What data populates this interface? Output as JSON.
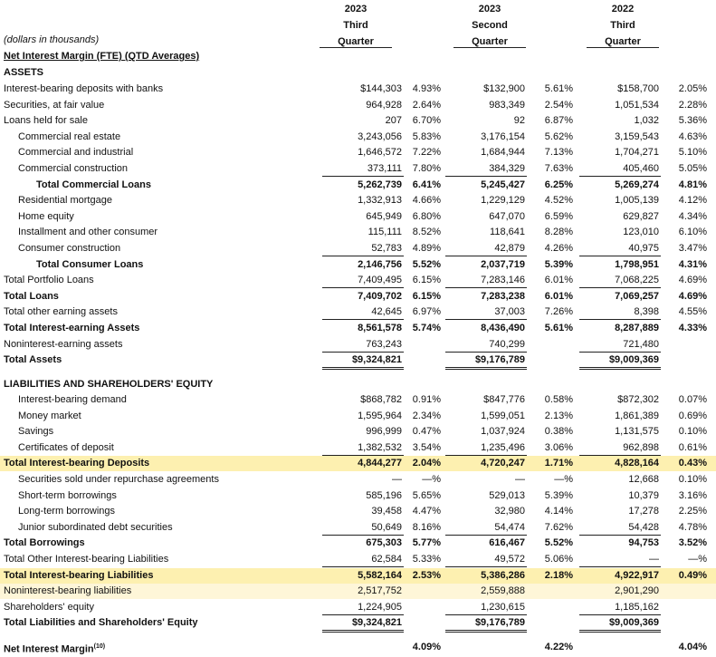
{
  "header": {
    "columns": [
      {
        "year": "2023",
        "period": "Third",
        "unit": "Quarter"
      },
      {
        "year": "2023",
        "period": "Second",
        "unit": "Quarter"
      },
      {
        "year": "2022",
        "period": "Third",
        "unit": "Quarter"
      }
    ]
  },
  "table": {
    "rows": [
      {
        "label": "(dollars in thousands)"
      },
      {
        "label": "Net Interest Margin (FTE) (QTD Averages)"
      },
      {
        "label": "ASSETS"
      },
      {
        "label": "Interest-bearing deposits with banks",
        "cells": [
          "$144,303",
          "4.93%",
          "$132,900",
          "5.61%",
          "$158,700",
          "2.05%"
        ]
      },
      {
        "label": "Securities, at fair value",
        "cells": [
          "964,928",
          "2.64%",
          "983,349",
          "2.54%",
          "1,051,534",
          "2.28%"
        ]
      },
      {
        "label": "Loans held for sale",
        "cells": [
          "207",
          "6.70%",
          "92",
          "6.87%",
          "1,032",
          "5.36%"
        ]
      },
      {
        "label": "Commercial real estate",
        "cells": [
          "3,243,056",
          "5.83%",
          "3,176,154",
          "5.62%",
          "3,159,543",
          "4.63%"
        ]
      },
      {
        "label": "Commercial and industrial",
        "cells": [
          "1,646,572",
          "7.22%",
          "1,684,944",
          "7.13%",
          "1,704,271",
          "5.10%"
        ]
      },
      {
        "label": "Commercial construction",
        "cells": [
          "373,111",
          "7.80%",
          "384,329",
          "7.63%",
          "405,460",
          "5.05%"
        ]
      },
      {
        "label": "Total Commercial Loans",
        "cells": [
          "5,262,739",
          "6.41%",
          "5,245,427",
          "6.25%",
          "5,269,274",
          "4.81%"
        ]
      },
      {
        "label": "Residential mortgage",
        "cells": [
          "1,332,913",
          "4.66%",
          "1,229,129",
          "4.52%",
          "1,005,139",
          "4.12%"
        ]
      },
      {
        "label": "Home equity",
        "cells": [
          "645,949",
          "6.80%",
          "647,070",
          "6.59%",
          "629,827",
          "4.34%"
        ]
      },
      {
        "label": "Installment and other consumer",
        "cells": [
          "115,111",
          "8.52%",
          "118,641",
          "8.28%",
          "123,010",
          "6.10%"
        ]
      },
      {
        "label": "Consumer construction",
        "cells": [
          "52,783",
          "4.89%",
          "42,879",
          "4.26%",
          "40,975",
          "3.47%"
        ]
      },
      {
        "label": "Total Consumer Loans",
        "cells": [
          "2,146,756",
          "5.52%",
          "2,037,719",
          "5.39%",
          "1,798,951",
          "4.31%"
        ]
      },
      {
        "label": "Total Portfolio Loans",
        "cells": [
          "7,409,495",
          "6.15%",
          "7,283,146",
          "6.01%",
          "7,068,225",
          "4.69%"
        ]
      },
      {
        "label": "Total Loans",
        "cells": [
          "7,409,702",
          "6.15%",
          "7,283,238",
          "6.01%",
          "7,069,257",
          "4.69%"
        ]
      },
      {
        "label": "Total other earning assets",
        "cells": [
          "42,645",
          "6.97%",
          "37,003",
          "7.26%",
          "8,398",
          "4.55%"
        ]
      },
      {
        "label": "Total Interest-earning Assets",
        "cells": [
          "8,561,578",
          "5.74%",
          "8,436,490",
          "5.61%",
          "8,287,889",
          "4.33%"
        ]
      },
      {
        "label": "Noninterest-earning assets",
        "cells": [
          "763,243",
          null,
          "740,299",
          null,
          "721,480",
          null
        ]
      },
      {
        "label": "Total Assets",
        "cells": [
          "$9,324,821",
          null,
          "$9,176,789",
          null,
          "$9,009,369",
          null
        ]
      },
      {
        "label": "LIABILITIES AND SHAREHOLDERS' EQUITY"
      },
      {
        "label": "Interest-bearing demand",
        "cells": [
          "$868,782",
          "0.91%",
          "$847,776",
          "0.58%",
          "$872,302",
          "0.07%"
        ]
      },
      {
        "label": "Money market",
        "cells": [
          "1,595,964",
          "2.34%",
          "1,599,051",
          "2.13%",
          "1,861,389",
          "0.69%"
        ]
      },
      {
        "label": "Savings",
        "cells": [
          "996,999",
          "0.47%",
          "1,037,924",
          "0.38%",
          "1,131,575",
          "0.10%"
        ]
      },
      {
        "label": "Certificates of deposit",
        "cells": [
          "1,382,532",
          "3.54%",
          "1,235,496",
          "3.06%",
          "962,898",
          "0.61%"
        ]
      },
      {
        "label": "Total Interest-bearing Deposits",
        "cells": [
          "4,844,277",
          "2.04%",
          "4,720,247",
          "1.71%",
          "4,828,164",
          "0.43%"
        ]
      },
      {
        "label": "Securities sold under repurchase agreements",
        "cells": [
          "—",
          "—%",
          "—",
          "—%",
          "12,668",
          "0.10%"
        ]
      },
      {
        "label": "Short-term borrowings",
        "cells": [
          "585,196",
          "5.65%",
          "529,013",
          "5.39%",
          "10,379",
          "3.16%"
        ]
      },
      {
        "label": "Long-term borrowings",
        "cells": [
          "39,458",
          "4.47%",
          "32,980",
          "4.14%",
          "17,278",
          "2.25%"
        ]
      },
      {
        "label": "Junior subordinated debt securities",
        "cells": [
          "50,649",
          "8.16%",
          "54,474",
          "7.62%",
          "54,428",
          "4.78%"
        ]
      },
      {
        "label": "Total Borrowings",
        "cells": [
          "675,303",
          "5.77%",
          "616,467",
          "5.52%",
          "94,753",
          "3.52%"
        ]
      },
      {
        "label": "Total Other Interest-bearing Liabilities",
        "cells": [
          "62,584",
          "5.33%",
          "49,572",
          "5.06%",
          "—",
          "—%"
        ]
      },
      {
        "label": "Total Interest-bearing Liabilities",
        "cells": [
          "5,582,164",
          "2.53%",
          "5,386,286",
          "2.18%",
          "4,922,917",
          "0.49%"
        ]
      },
      {
        "label": "Noninterest-bearing liabilities",
        "cells": [
          "2,517,752",
          null,
          "2,559,888",
          null,
          "2,901,290",
          null
        ]
      },
      {
        "label": "Shareholders' equity",
        "cells": [
          "1,224,905",
          null,
          "1,230,615",
          null,
          "1,185,162",
          null
        ]
      },
      {
        "label": "Total Liabilities and Shareholders' Equity",
        "cells": [
          "$9,324,821",
          null,
          "$9,176,789",
          null,
          "$9,009,369",
          null
        ]
      },
      {
        "label": "Net Interest Margin",
        "note": "(10)",
        "cells": [
          null,
          "4.09%",
          null,
          "4.22%",
          null,
          "4.04%"
        ]
      }
    ]
  }
}
